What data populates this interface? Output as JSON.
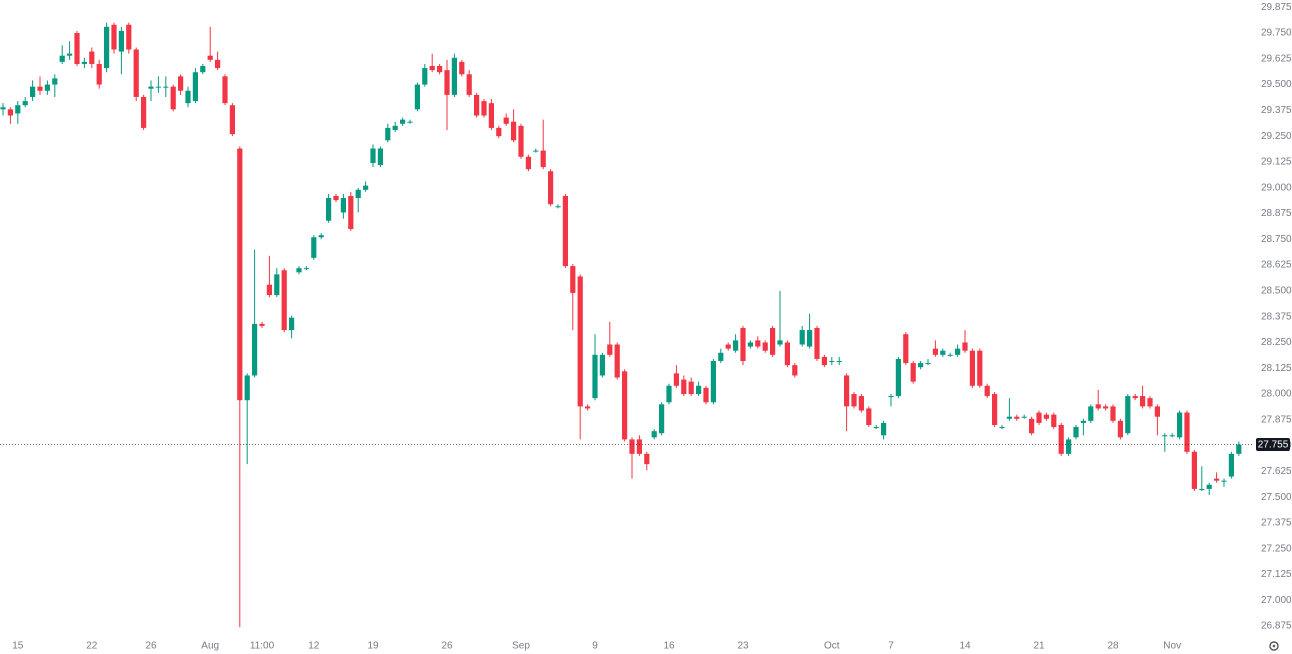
{
  "chart_data": {
    "type": "candlestick",
    "up_color": "#089981",
    "down_color": "#f23645",
    "last_price": 27.755,
    "ylim": [
      26.827,
      29.91
    ],
    "yticks": [
      {
        "value": 26.875,
        "label": "26.875"
      },
      {
        "value": 27,
        "label": "27.000"
      },
      27.125,
      {
        "value": 27.25,
        "label": "27.250"
      },
      27.375,
      {
        "value": 27.5,
        "label": "27.500"
      },
      27.625,
      {
        "value": 27.75,
        "label": "27.750"
      },
      27.875,
      {
        "value": 28,
        "label": "28.000"
      },
      28.125,
      {
        "value": 28.25,
        "label": "28.250"
      },
      28.375,
      {
        "value": 28.5,
        "label": "28.500"
      },
      28.625,
      {
        "value": 28.75,
        "label": "28.750"
      },
      28.875,
      {
        "value": 29,
        "label": "29.000"
      },
      29.125,
      {
        "value": 29.25,
        "label": "29.250"
      },
      29.375,
      {
        "value": 29.5,
        "label": "29.500"
      },
      29.625,
      {
        "value": 29.75,
        "label": "29.750"
      },
      29.875
    ],
    "categories": [
      null,
      null,
      "15",
      null,
      null,
      null,
      null,
      null,
      null,
      null,
      null,
      null,
      "22",
      null,
      null,
      null,
      null,
      null,
      null,
      null,
      "26",
      null,
      null,
      null,
      null,
      null,
      null,
      null,
      "Aug",
      null,
      null,
      null,
      null,
      null,
      null,
      "11:00",
      null,
      null,
      null,
      null,
      null,
      null,
      "12",
      null,
      null,
      null,
      null,
      null,
      null,
      null,
      "19",
      null,
      null,
      null,
      null,
      null,
      null,
      null,
      null,
      null,
      "26",
      null,
      null,
      null,
      null,
      null,
      null,
      null,
      null,
      null,
      "Sep",
      null,
      null,
      null,
      null,
      null,
      null,
      null,
      null,
      null,
      "9",
      null,
      null,
      null,
      null,
      null,
      null,
      null,
      null,
      null,
      "16",
      null,
      null,
      null,
      null,
      null,
      null,
      null,
      null,
      null,
      "23",
      null,
      null,
      null,
      null,
      null,
      null,
      null,
      null,
      null,
      null,
      null,
      "Oct",
      null,
      null,
      null,
      null,
      null,
      null,
      null,
      "7",
      null,
      null,
      null,
      null,
      null,
      null,
      null,
      null,
      null,
      "14",
      null,
      null,
      null,
      null,
      null,
      null,
      null,
      null,
      null,
      "21",
      null,
      null,
      null,
      null,
      null,
      null,
      null,
      null,
      null,
      "28",
      null,
      null,
      null,
      null,
      null,
      null,
      null,
      "Nov",
      null,
      null,
      null,
      null,
      null,
      null,
      null,
      null,
      null
    ],
    "open": [
      29.38,
      29.38,
      29.36,
      29.4,
      29.44,
      29.49,
      29.47,
      29.5,
      29.61,
      29.64,
      29.75,
      29.6,
      29.66,
      29.6,
      29.58,
      29.79,
      29.66,
      29.79,
      29.67,
      29.44,
      29.48,
      29.49,
      29.49,
      29.49,
      29.54,
      29.41,
      29.42,
      29.56,
      29.64,
      29.62,
      29.54,
      29.4,
      29.19,
      27.97,
      28.09,
      28.34,
      28.53,
      28.48,
      28.6,
      28.31,
      28.59,
      28.61,
      28.66,
      28.76,
      28.84,
      28.96,
      28.88,
      28.96,
      28.95,
      28.99,
      29.12,
      29.11,
      29.23,
      29.28,
      29.31,
      29.32,
      29.38,
      29.5,
      29.59,
      29.59,
      29.57,
      29.45,
      29.61,
      29.55,
      29.45,
      29.42,
      29.41,
      29.29,
      29.34,
      29.32,
      29.3,
      29.15,
      29.18,
      29.18,
      29.08,
      28.91,
      28.96,
      28.62,
      28.57,
      27.94,
      27.98,
      28.09,
      28.24,
      28.24,
      28.11,
      27.78,
      27.78,
      27.71,
      27.79,
      27.81,
      27.96,
      28.1,
      28.07,
      28.06,
      28.0,
      28.03,
      27.96,
      28.16,
      28.24,
      28.21,
      28.32,
      28.23,
      28.26,
      28.25,
      28.32,
      28.24,
      28.25,
      28.14,
      28.24,
      28.23,
      28.32,
      28.18,
      28.16,
      28.16,
      28.09,
      28.0,
      27.99,
      27.93,
      27.84,
      27.8,
      27.99,
      27.99,
      28.29,
      28.15,
      28.13,
      28.15,
      28.22,
      28.19,
      28.19,
      28.19,
      28.25,
      28.21,
      28.21,
      28.04,
      28.0,
      27.84,
      27.88,
      27.89,
      27.89,
      27.88,
      27.91,
      27.9,
      27.9,
      27.85,
      27.71,
      27.79,
      27.86,
      27.87,
      27.95,
      27.94,
      27.94,
      27.87,
      27.81,
      27.99,
      27.99,
      27.98,
      27.94,
      27.8,
      27.8,
      27.79,
      27.91,
      27.72,
      27.54,
      27.54,
      27.59,
      27.58,
      27.6,
      27.71
    ],
    "high": [
      29.41,
      29.39,
      29.42,
      29.44,
      29.52,
      29.54,
      29.52,
      29.55,
      29.69,
      29.71,
      29.76,
      29.63,
      29.68,
      29.62,
      29.8,
      29.8,
      29.78,
      29.8,
      29.68,
      29.45,
      29.52,
      29.54,
      29.54,
      29.5,
      29.55,
      29.49,
      29.58,
      29.6,
      29.78,
      29.66,
      29.55,
      29.41,
      29.2,
      28.1,
      28.7,
      28.35,
      28.67,
      28.61,
      28.61,
      28.38,
      28.62,
      28.62,
      28.77,
      28.78,
      28.97,
      28.97,
      28.97,
      28.98,
      29.0,
      29.03,
      29.21,
      29.2,
      29.31,
      29.32,
      29.34,
      29.33,
      29.51,
      29.6,
      29.65,
      29.6,
      29.62,
      29.65,
      29.62,
      29.57,
      29.46,
      29.43,
      29.43,
      29.3,
      29.36,
      29.38,
      29.31,
      29.16,
      29.19,
      29.33,
      29.09,
      28.92,
      28.97,
      28.63,
      28.58,
      27.95,
      28.29,
      28.2,
      28.35,
      28.25,
      28.12,
      27.79,
      27.8,
      27.72,
      27.83,
      27.96,
      28.05,
      28.14,
      28.09,
      28.08,
      28.06,
      28.04,
      28.17,
      28.22,
      28.25,
      28.29,
      28.33,
      28.26,
      28.28,
      28.26,
      28.33,
      28.5,
      28.26,
      28.15,
      28.33,
      28.39,
      28.33,
      28.19,
      28.18,
      28.18,
      28.1,
      28.01,
      28.0,
      27.94,
      27.85,
      27.87,
      28.0,
      28.18,
      28.3,
      28.16,
      28.16,
      28.17,
      28.26,
      28.22,
      28.2,
      28.24,
      28.31,
      28.22,
      28.22,
      28.05,
      28.01,
      27.85,
      27.98,
      27.9,
      27.9,
      27.89,
      27.92,
      27.91,
      27.91,
      27.86,
      27.79,
      27.85,
      27.88,
      27.95,
      28.02,
      27.95,
      27.95,
      27.88,
      28.0,
      28.0,
      28.04,
      27.99,
      27.95,
      27.81,
      27.81,
      27.92,
      27.92,
      27.73,
      27.65,
      27.57,
      27.62,
      27.59,
      27.72,
      27.77
    ],
    "low": [
      29.35,
      29.31,
      29.31,
      29.39,
      29.42,
      29.45,
      29.45,
      29.44,
      29.6,
      29.62,
      29.59,
      29.58,
      29.58,
      29.48,
      29.56,
      29.65,
      29.55,
      29.65,
      29.42,
      29.28,
      29.42,
      29.46,
      29.44,
      29.37,
      29.45,
      29.39,
      29.41,
      29.55,
      29.61,
      29.57,
      29.4,
      29.25,
      26.87,
      27.66,
      28.08,
      28.32,
      28.47,
      28.47,
      28.3,
      28.27,
      28.58,
      28.6,
      28.65,
      28.75,
      28.83,
      28.93,
      28.85,
      28.79,
      28.88,
      28.98,
      29.1,
      29.1,
      29.22,
      29.27,
      29.3,
      29.31,
      29.37,
      29.49,
      29.56,
      29.55,
      29.28,
      29.44,
      29.54,
      29.44,
      29.34,
      29.34,
      29.28,
      29.24,
      29.3,
      29.22,
      29.14,
      29.08,
      29.17,
      29.09,
      28.91,
      28.9,
      28.61,
      28.31,
      27.78,
      27.92,
      27.97,
      28.08,
      28.18,
      28.07,
      27.77,
      27.59,
      27.7,
      27.63,
      27.78,
      27.8,
      27.95,
      28.03,
      27.99,
      27.99,
      27.99,
      27.95,
      27.95,
      28.15,
      28.21,
      28.2,
      28.14,
      28.22,
      28.22,
      28.2,
      28.18,
      28.23,
      28.13,
      28.08,
      28.23,
      28.22,
      28.16,
      28.13,
      28.14,
      28.14,
      27.82,
      27.93,
      27.91,
      27.84,
      27.83,
      27.78,
      27.94,
      27.98,
      28.14,
      28.05,
      28.12,
      28.14,
      28.18,
      28.18,
      28.18,
      28.18,
      28.2,
      28.03,
      28.03,
      27.98,
      27.84,
      27.83,
      27.87,
      27.87,
      27.88,
      27.8,
      27.85,
      27.87,
      27.83,
      27.7,
      27.7,
      27.78,
      27.8,
      27.86,
      27.92,
      27.92,
      27.86,
      27.78,
      27.8,
      27.97,
      27.93,
      27.93,
      27.8,
      27.72,
      27.79,
      27.78,
      27.71,
      27.53,
      27.53,
      27.51,
      27.57,
      27.55,
      27.59,
      27.7
    ],
    "close": [
      29.39,
      29.35,
      29.4,
      29.42,
      29.49,
      29.47,
      29.5,
      29.53,
      29.64,
      29.65,
      29.6,
      29.61,
      29.6,
      29.5,
      29.78,
      29.67,
      29.76,
      29.67,
      29.44,
      29.29,
      29.49,
      29.49,
      29.49,
      29.38,
      29.47,
      29.47,
      29.56,
      29.59,
      29.62,
      29.58,
      29.41,
      29.26,
      27.97,
      28.09,
      28.34,
      28.33,
      28.48,
      28.58,
      28.31,
      28.37,
      28.61,
      28.61,
      28.76,
      28.77,
      28.95,
      28.94,
      28.95,
      28.8,
      28.99,
      29.01,
      29.19,
      29.19,
      29.29,
      29.3,
      29.33,
      29.32,
      29.5,
      29.58,
      29.57,
      29.56,
      29.45,
      29.63,
      29.55,
      29.45,
      29.35,
      29.35,
      29.29,
      29.25,
      29.31,
      29.23,
      29.15,
      29.09,
      29.18,
      29.1,
      28.92,
      28.91,
      28.62,
      28.49,
      27.94,
      27.93,
      28.19,
      28.19,
      28.19,
      28.08,
      27.78,
      27.71,
      27.71,
      27.66,
      27.82,
      27.95,
      28.04,
      28.04,
      28.0,
      28.0,
      28.04,
      27.96,
      28.16,
      28.2,
      28.22,
      28.26,
      28.16,
      28.25,
      28.23,
      28.21,
      28.19,
      28.26,
      28.14,
      28.09,
      28.31,
      28.31,
      28.17,
      28.14,
      28.16,
      28.16,
      27.94,
      27.94,
      27.92,
      27.85,
      27.84,
      27.86,
      27.99,
      28.17,
      28.15,
      28.06,
      28.15,
      28.15,
      28.19,
      28.21,
      28.19,
      28.22,
      28.21,
      28.04,
      28.04,
      27.99,
      27.85,
      27.84,
      27.89,
      27.88,
      27.89,
      27.81,
      27.86,
      27.88,
      27.84,
      27.71,
      27.78,
      27.84,
      27.87,
      27.94,
      27.93,
      27.93,
      27.87,
      27.79,
      27.99,
      27.98,
      27.94,
      27.94,
      27.89,
      27.8,
      27.8,
      27.91,
      27.72,
      27.54,
      27.54,
      27.56,
      27.58,
      27.58,
      27.71,
      27.755
    ]
  }
}
